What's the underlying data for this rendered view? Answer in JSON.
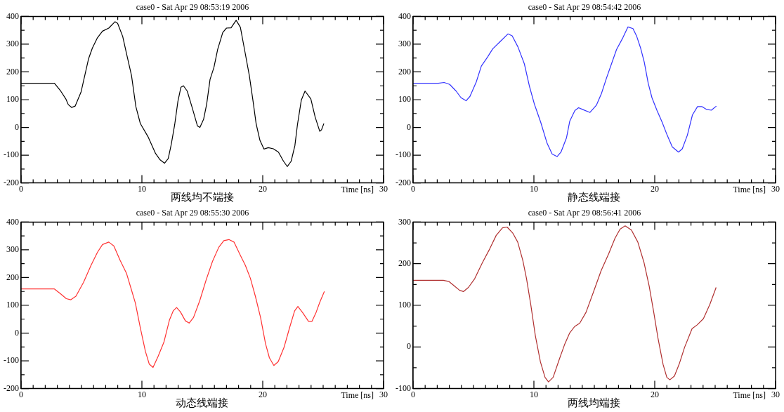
{
  "chart_data": [
    {
      "type": "line",
      "title": "case0 - Sat Apr 29 08:53:19 2006",
      "xlabel": "Time [ns]",
      "annotations": [
        "两线均不端接"
      ],
      "xlim": [
        0,
        30
      ],
      "ylim": [
        -200,
        400
      ],
      "xticks": [
        0,
        {
          "value": 1,
          "label": null
        },
        {
          "value": 2,
          "label": null
        },
        {
          "value": 3,
          "label": null
        },
        {
          "value": 4,
          "label": null
        },
        {
          "value": 5,
          "label": null
        },
        {
          "value": 6,
          "label": null
        },
        {
          "value": 7,
          "label": null
        },
        {
          "value": 8,
          "label": null
        },
        {
          "value": 9,
          "label": null
        },
        10,
        {
          "value": 11,
          "label": null
        },
        {
          "value": 12,
          "label": null
        },
        {
          "value": 13,
          "label": null
        },
        {
          "value": 14,
          "label": null
        },
        {
          "value": 15,
          "label": null
        },
        {
          "value": 16,
          "label": null
        },
        {
          "value": 17,
          "label": null
        },
        {
          "value": 18,
          "label": null
        },
        {
          "value": 19,
          "label": null
        },
        20,
        {
          "value": 21,
          "label": null
        },
        {
          "value": 22,
          "label": null
        },
        {
          "value": 23,
          "label": null
        },
        {
          "value": 24,
          "label": null
        },
        {
          "value": 25,
          "label": null
        },
        {
          "value": 26,
          "label": null
        },
        {
          "value": 27,
          "label": null
        },
        {
          "value": 28,
          "label": null
        },
        {
          "value": 29,
          "label": null
        },
        30
      ],
      "yticks": [
        -200,
        {
          "value": -150,
          "label": null
        },
        -100,
        {
          "value": -50,
          "label": null
        },
        0,
        {
          "value": 50,
          "label": null
        },
        100,
        {
          "value": 150,
          "label": null
        },
        200,
        {
          "value": 250,
          "label": null
        },
        300,
        {
          "value": 350,
          "label": null
        },
        400
      ],
      "series": [
        {
          "color": "#000000",
          "x": [
            0,
            2.76,
            3.28,
            3.7,
            3.91,
            4.18,
            4.48,
            4.96,
            5.59,
            5.9,
            6.32,
            6.74,
            7.26,
            7.78,
            7.99,
            8.41,
            8.72,
            9.14,
            9.5,
            9.87,
            10.5,
            11.13,
            11.51,
            11.87,
            12.18,
            12.43,
            12.71,
            12.98,
            13.23,
            13.44,
            13.75,
            14.17,
            14.6,
            14.8,
            15.11,
            15.36,
            15.64,
            15.96,
            16.27,
            16.69,
            17.0,
            17.38,
            17.8,
            18.15,
            18.53,
            18.89,
            19.2,
            19.45,
            19.77,
            20.1,
            20.46,
            20.88,
            21.3,
            21.72,
            22.03,
            22.35,
            22.66,
            22.87,
            23.19,
            23.5,
            23.98,
            24.34,
            24.72,
            24.86,
            25.06
          ],
          "values": [
            159,
            159,
            131,
            103,
            82,
            72,
            77,
            127,
            248,
            286,
            323,
            347,
            358,
            381,
            375,
            328,
            267,
            187,
            75,
            14,
            -33,
            -94,
            -117,
            -129,
            -112,
            -61,
            9,
            94,
            145,
            150,
            131,
            70,
            5,
            0,
            30,
            84,
            173,
            216,
            281,
            342,
            358,
            359,
            386,
            361,
            272,
            187,
            94,
            14,
            -47,
            -78,
            -73,
            -77,
            -89,
            -122,
            -141,
            -122,
            -66,
            9,
            98,
            131,
            103,
            37,
            -14,
            -9,
            14
          ]
        }
      ]
    },
    {
      "type": "line",
      "title": "case0 - Sat Apr 29 08:54:42 2006",
      "xlabel": "Time [ns]",
      "annotations": [
        "静态线端接"
      ],
      "xlim": [
        0,
        30
      ],
      "ylim": [
        -200,
        400
      ],
      "xticks": [
        0,
        {
          "value": 1,
          "label": null
        },
        {
          "value": 2,
          "label": null
        },
        {
          "value": 3,
          "label": null
        },
        {
          "value": 4,
          "label": null
        },
        {
          "value": 5,
          "label": null
        },
        {
          "value": 6,
          "label": null
        },
        {
          "value": 7,
          "label": null
        },
        {
          "value": 8,
          "label": null
        },
        {
          "value": 9,
          "label": null
        },
        10,
        {
          "value": 11,
          "label": null
        },
        {
          "value": 12,
          "label": null
        },
        {
          "value": 13,
          "label": null
        },
        {
          "value": 14,
          "label": null
        },
        {
          "value": 15,
          "label": null
        },
        {
          "value": 16,
          "label": null
        },
        {
          "value": 17,
          "label": null
        },
        {
          "value": 18,
          "label": null
        },
        {
          "value": 19,
          "label": null
        },
        20,
        {
          "value": 21,
          "label": null
        },
        {
          "value": 22,
          "label": null
        },
        {
          "value": 23,
          "label": null
        },
        {
          "value": 24,
          "label": null
        },
        {
          "value": 25,
          "label": null
        },
        {
          "value": 26,
          "label": null
        },
        {
          "value": 27,
          "label": null
        },
        {
          "value": 28,
          "label": null
        },
        {
          "value": 29,
          "label": null
        },
        30
      ],
      "yticks": [
        -200,
        {
          "value": -150,
          "label": null
        },
        -100,
        {
          "value": -50,
          "label": null
        },
        0,
        {
          "value": 50,
          "label": null
        },
        100,
        {
          "value": 150,
          "label": null
        },
        200,
        {
          "value": 250,
          "label": null
        },
        300,
        {
          "value": 350,
          "label": null
        },
        400
      ],
      "series": [
        {
          "color": "#3333ff",
          "x": [
            0,
            2.09,
            2.57,
            3.03,
            3.56,
            3.97,
            4.39,
            4.71,
            5.23,
            5.65,
            6.17,
            6.59,
            7.22,
            7.85,
            8.2,
            8.68,
            9.21,
            9.62,
            10.04,
            10.56,
            11.09,
            11.51,
            11.92,
            12.24,
            12.7,
            12.97,
            13.39,
            13.7,
            14.02,
            14.64,
            15.17,
            15.59,
            16.01,
            16.42,
            16.84,
            17.36,
            17.78,
            18.2,
            18.51,
            18.83,
            19.14,
            19.46,
            19.77,
            20.19,
            20.61,
            21.03,
            21.45,
            21.97,
            22.28,
            22.7,
            23.12,
            23.54,
            23.92,
            24.27,
            24.69,
            25.1
          ],
          "values": [
            159,
            159,
            162,
            155,
            131,
            107,
            96,
            112,
            164,
            221,
            254,
            283,
            310,
            337,
            330,
            290,
            229,
            150,
            84,
            19,
            -57,
            -96,
            -105,
            -89,
            -37,
            23,
            61,
            71,
            65,
            54,
            80,
            122,
            178,
            229,
            281,
            323,
            362,
            356,
            328,
            286,
            234,
            159,
            107,
            61,
            19,
            -28,
            -70,
            -89,
            -77,
            -28,
            45,
            75,
            75,
            65,
            62,
            77
          ]
        }
      ]
    },
    {
      "type": "line",
      "title": "case0 - Sat Apr 29 08:55:30 2006",
      "xlabel": "Time [ns]",
      "annotations": [
        "动态线端接"
      ],
      "xlim": [
        0,
        30
      ],
      "ylim": [
        -200,
        400
      ],
      "xticks": [
        0,
        {
          "value": 1,
          "label": null
        },
        {
          "value": 2,
          "label": null
        },
        {
          "value": 3,
          "label": null
        },
        {
          "value": 4,
          "label": null
        },
        {
          "value": 5,
          "label": null
        },
        {
          "value": 6,
          "label": null
        },
        {
          "value": 7,
          "label": null
        },
        {
          "value": 8,
          "label": null
        },
        {
          "value": 9,
          "label": null
        },
        10,
        {
          "value": 11,
          "label": null
        },
        {
          "value": 12,
          "label": null
        },
        {
          "value": 13,
          "label": null
        },
        {
          "value": 14,
          "label": null
        },
        {
          "value": 15,
          "label": null
        },
        {
          "value": 16,
          "label": null
        },
        {
          "value": 17,
          "label": null
        },
        {
          "value": 18,
          "label": null
        },
        {
          "value": 19,
          "label": null
        },
        20,
        {
          "value": 21,
          "label": null
        },
        {
          "value": 22,
          "label": null
        },
        {
          "value": 23,
          "label": null
        },
        {
          "value": 24,
          "label": null
        },
        {
          "value": 25,
          "label": null
        },
        {
          "value": 26,
          "label": null
        },
        {
          "value": 27,
          "label": null
        },
        {
          "value": 28,
          "label": null
        },
        {
          "value": 29,
          "label": null
        },
        30
      ],
      "yticks": [
        -200,
        {
          "value": -150,
          "label": null
        },
        -100,
        {
          "value": -50,
          "label": null
        },
        0,
        {
          "value": 50,
          "label": null
        },
        100,
        {
          "value": 150,
          "label": null
        },
        200,
        {
          "value": 250,
          "label": null
        },
        300,
        {
          "value": 350,
          "label": null
        },
        400
      ],
      "series": [
        {
          "color": "#ff3333",
          "x": [
            0,
            2.76,
            3.28,
            3.74,
            4.12,
            4.54,
            5.17,
            5.79,
            6.32,
            6.74,
            7.26,
            7.68,
            8.2,
            8.72,
            9.14,
            9.46,
            9.87,
            10.29,
            10.61,
            10.92,
            11.34,
            11.82,
            12.28,
            12.59,
            12.87,
            13.18,
            13.6,
            13.91,
            14.27,
            14.79,
            15.32,
            15.84,
            16.36,
            16.78,
            17.2,
            17.62,
            18.14,
            18.56,
            18.98,
            19.4,
            19.82,
            20.23,
            20.55,
            20.92,
            21.28,
            21.76,
            22.22,
            22.64,
            22.91,
            23.31,
            23.79,
            24.07,
            24.42,
            24.73,
            25.1
          ],
          "values": [
            159,
            159,
            141,
            124,
            120,
            133,
            183,
            244,
            291,
            319,
            328,
            314,
            262,
            216,
            155,
            108,
            19,
            -66,
            -112,
            -124,
            -84,
            -33,
            47,
            80,
            92,
            77,
            44,
            36,
            56,
            117,
            192,
            258,
            309,
            333,
            337,
            328,
            281,
            244,
            197,
            131,
            56,
            -38,
            -89,
            -117,
            -103,
            -52,
            19,
            80,
            96,
            73,
            42,
            42,
            75,
            112,
            150
          ]
        }
      ]
    },
    {
      "type": "line",
      "title": "case0 - Sat Apr 29 08:56:41 2006",
      "xlabel": "Time [ns]",
      "annotations": [
        "两线均端接"
      ],
      "xlim": [
        0,
        30
      ],
      "ylim": [
        -100,
        300
      ],
      "xticks": [
        0,
        {
          "value": 1,
          "label": null
        },
        {
          "value": 2,
          "label": null
        },
        {
          "value": 3,
          "label": null
        },
        {
          "value": 4,
          "label": null
        },
        {
          "value": 5,
          "label": null
        },
        {
          "value": 6,
          "label": null
        },
        {
          "value": 7,
          "label": null
        },
        {
          "value": 8,
          "label": null
        },
        {
          "value": 9,
          "label": null
        },
        10,
        {
          "value": 11,
          "label": null
        },
        {
          "value": 12,
          "label": null
        },
        {
          "value": 13,
          "label": null
        },
        {
          "value": 14,
          "label": null
        },
        {
          "value": 15,
          "label": null
        },
        {
          "value": 16,
          "label": null
        },
        {
          "value": 17,
          "label": null
        },
        {
          "value": 18,
          "label": null
        },
        {
          "value": 19,
          "label": null
        },
        20,
        {
          "value": 21,
          "label": null
        },
        {
          "value": 22,
          "label": null
        },
        {
          "value": 23,
          "label": null
        },
        {
          "value": 24,
          "label": null
        },
        {
          "value": 25,
          "label": null
        },
        {
          "value": 26,
          "label": null
        },
        {
          "value": 27,
          "label": null
        },
        {
          "value": 28,
          "label": null
        },
        {
          "value": 29,
          "label": null
        },
        30
      ],
      "yticks": [
        -100,
        {
          "value": -50,
          "label": null
        },
        0,
        {
          "value": 50,
          "label": null
        },
        100,
        {
          "value": 150,
          "label": null
        },
        200,
        {
          "value": 250,
          "label": null
        },
        300
      ],
      "series": [
        {
          "color": "#b03030",
          "x": [
            0,
            2.5,
            2.98,
            3.44,
            3.85,
            4.17,
            4.58,
            5.1,
            5.73,
            6.35,
            6.88,
            7.4,
            7.78,
            8.24,
            8.66,
            9.08,
            9.39,
            9.74,
            10.12,
            10.54,
            10.92,
            11.21,
            11.59,
            12.11,
            12.53,
            12.95,
            13.37,
            13.79,
            14.31,
            14.94,
            15.56,
            16.19,
            16.71,
            17.13,
            17.55,
            18.07,
            18.6,
            19.12,
            19.54,
            19.92,
            20.27,
            20.69,
            21.0,
            21.25,
            21.63,
            22.05,
            22.47,
            23.09,
            23.51,
            24.03,
            24.56,
            25.08
          ],
          "values": [
            160,
            160,
            157,
            146,
            136,
            133,
            143,
            164,
            202,
            236,
            268,
            286,
            288,
            274,
            252,
            208,
            164,
            102,
            27,
            -36,
            -73,
            -84,
            -73,
            -29,
            5,
            33,
            49,
            57,
            83,
            133,
            183,
            224,
            261,
            283,
            291,
            281,
            252,
            202,
            146,
            83,
            21,
            -42,
            -73,
            -79,
            -70,
            -39,
            -1,
            44,
            53,
            68,
            102,
            143
          ]
        }
      ]
    }
  ]
}
